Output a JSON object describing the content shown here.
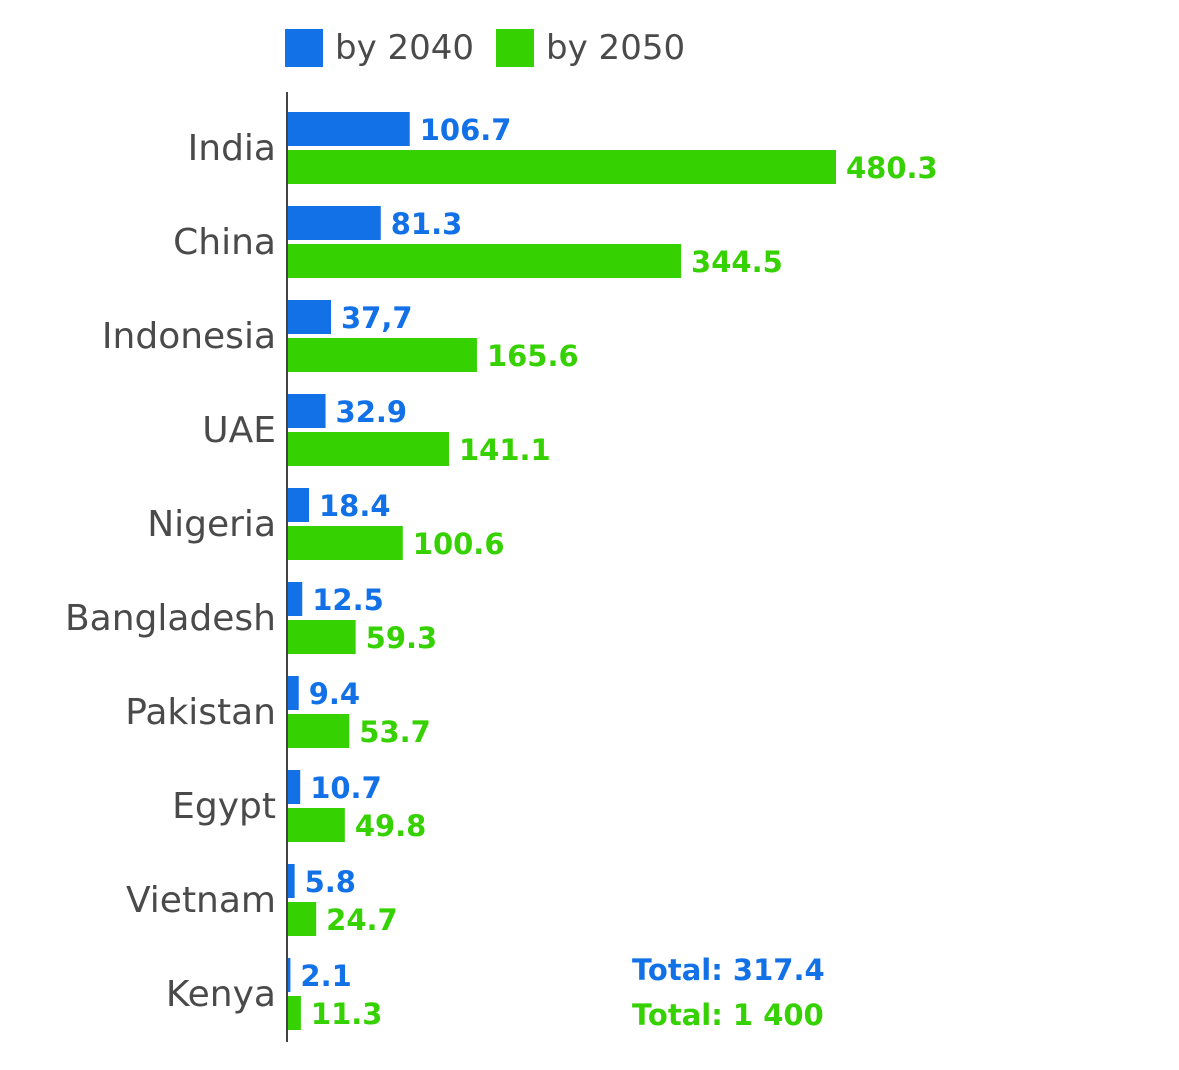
{
  "chart_data": {
    "type": "bar",
    "orientation": "horizontal",
    "categories": [
      "India",
      "China",
      "Indonesia",
      "UAE",
      "Nigeria",
      "Bangladesh",
      "Pakistan",
      "Egypt",
      "Vietnam",
      "Kenya"
    ],
    "series": [
      {
        "name": "by 2040",
        "color": "#1271e6",
        "values": [
          106.7,
          81.3,
          37.7,
          32.9,
          18.4,
          12.5,
          9.4,
          10.7,
          5.8,
          2.1
        ],
        "labels": [
          "106.7",
          "81.3",
          "37,7",
          "32.9",
          "18.4",
          "12.5",
          "9.4",
          "10.7",
          "5.8",
          "2.1"
        ]
      },
      {
        "name": "by 2050",
        "color": "#36d100",
        "values": [
          480.3,
          344.5,
          165.6,
          141.1,
          100.6,
          59.3,
          53.7,
          49.8,
          24.7,
          11.3
        ],
        "labels": [
          "480.3",
          "344.5",
          "165.6",
          "141.1",
          "100.6",
          "59.3",
          "53.7",
          "49.8",
          "24.7",
          "11.3"
        ]
      }
    ],
    "legend_position": "top",
    "grid": false,
    "xlim": [
      0,
      520
    ],
    "annotations": [
      {
        "text": "Total: 317.4",
        "color": "#1271e6"
      },
      {
        "text": "Total: 1 400",
        "color": "#36d100"
      }
    ]
  }
}
